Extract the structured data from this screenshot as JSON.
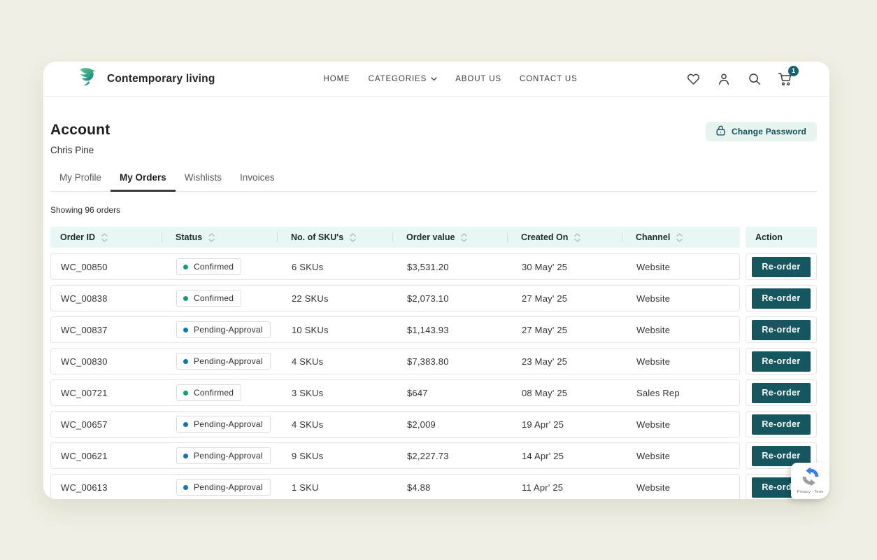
{
  "brand": {
    "name": "Contemporary living",
    "logo": "hummingbird-logo"
  },
  "nav": {
    "items": [
      {
        "label": "HOME",
        "chevron": false
      },
      {
        "label": "CATEGORIES",
        "chevron": true
      },
      {
        "label": "ABOUT US",
        "chevron": false
      },
      {
        "label": "CONTACT US",
        "chevron": false
      }
    ]
  },
  "header_actions": {
    "icons": [
      "wishlist-heart-icon",
      "account-user-icon",
      "search-icon",
      "cart-icon"
    ],
    "cart_badge": "1"
  },
  "account": {
    "title": "Account",
    "user_name": "Chris Pine",
    "change_password_label": "Change Password"
  },
  "tabs": [
    {
      "label": "My Profile",
      "active": false
    },
    {
      "label": "My Orders",
      "active": true
    },
    {
      "label": "Wishlists",
      "active": false
    },
    {
      "label": "Invoices",
      "active": false
    }
  ],
  "orders": {
    "summary": "Showing 96 orders",
    "columns": [
      {
        "label": "Order ID",
        "sortable": true
      },
      {
        "label": "Status",
        "sortable": true
      },
      {
        "label": "No. of SKU's",
        "sortable": true
      },
      {
        "label": "Order value",
        "sortable": true
      },
      {
        "label": "Created On",
        "sortable": true
      },
      {
        "label": "Channel",
        "sortable": true
      },
      {
        "label": "Action",
        "sortable": false
      }
    ],
    "action_label": "Re-order",
    "rows": [
      {
        "id": "WC_00850",
        "status": "Confirmed",
        "skus": "6 SKUs",
        "value": "$3,531.20",
        "created": "30 May' 25",
        "channel": "Website"
      },
      {
        "id": "WC_00838",
        "status": "Confirmed",
        "skus": "22 SKUs",
        "value": "$2,073.10",
        "created": "27 May' 25",
        "channel": "Website"
      },
      {
        "id": "WC_00837",
        "status": "Pending-Approval",
        "skus": "10 SKUs",
        "value": "$1,143.93",
        "created": "27 May' 25",
        "channel": "Website"
      },
      {
        "id": "WC_00830",
        "status": "Pending-Approval",
        "skus": "4 SKUs",
        "value": "$7,383.80",
        "created": "23 May' 25",
        "channel": "Website"
      },
      {
        "id": "WC_00721",
        "status": "Confirmed",
        "skus": "3 SKUs",
        "value": "$647",
        "created": "08 May' 25",
        "channel": "Sales Rep"
      },
      {
        "id": "WC_00657",
        "status": "Pending-Approval",
        "skus": "4 SKUs",
        "value": "$2,009",
        "created": "19 Apr' 25",
        "channel": "Website"
      },
      {
        "id": "WC_00621",
        "status": "Pending-Approval",
        "skus": "9 SKUs",
        "value": "$2,227.73",
        "created": "14 Apr' 25",
        "channel": "Website"
      },
      {
        "id": "WC_00613",
        "status": "Pending-Approval",
        "skus": "1 SKU",
        "value": "$4.88",
        "created": "11 Apr' 25",
        "channel": "Website"
      }
    ]
  },
  "recaptcha": {
    "label": "Privacy - Term"
  },
  "colors": {
    "page_bg": "#f0efe3",
    "accent_teal": "#15565f",
    "mint_header": "#e9f7f4",
    "mint_button": "#e7f4f0",
    "confirmed_dot": "#169c6e",
    "pending_dot": "#1474b2",
    "cart_badge_bg": "#15636e"
  }
}
